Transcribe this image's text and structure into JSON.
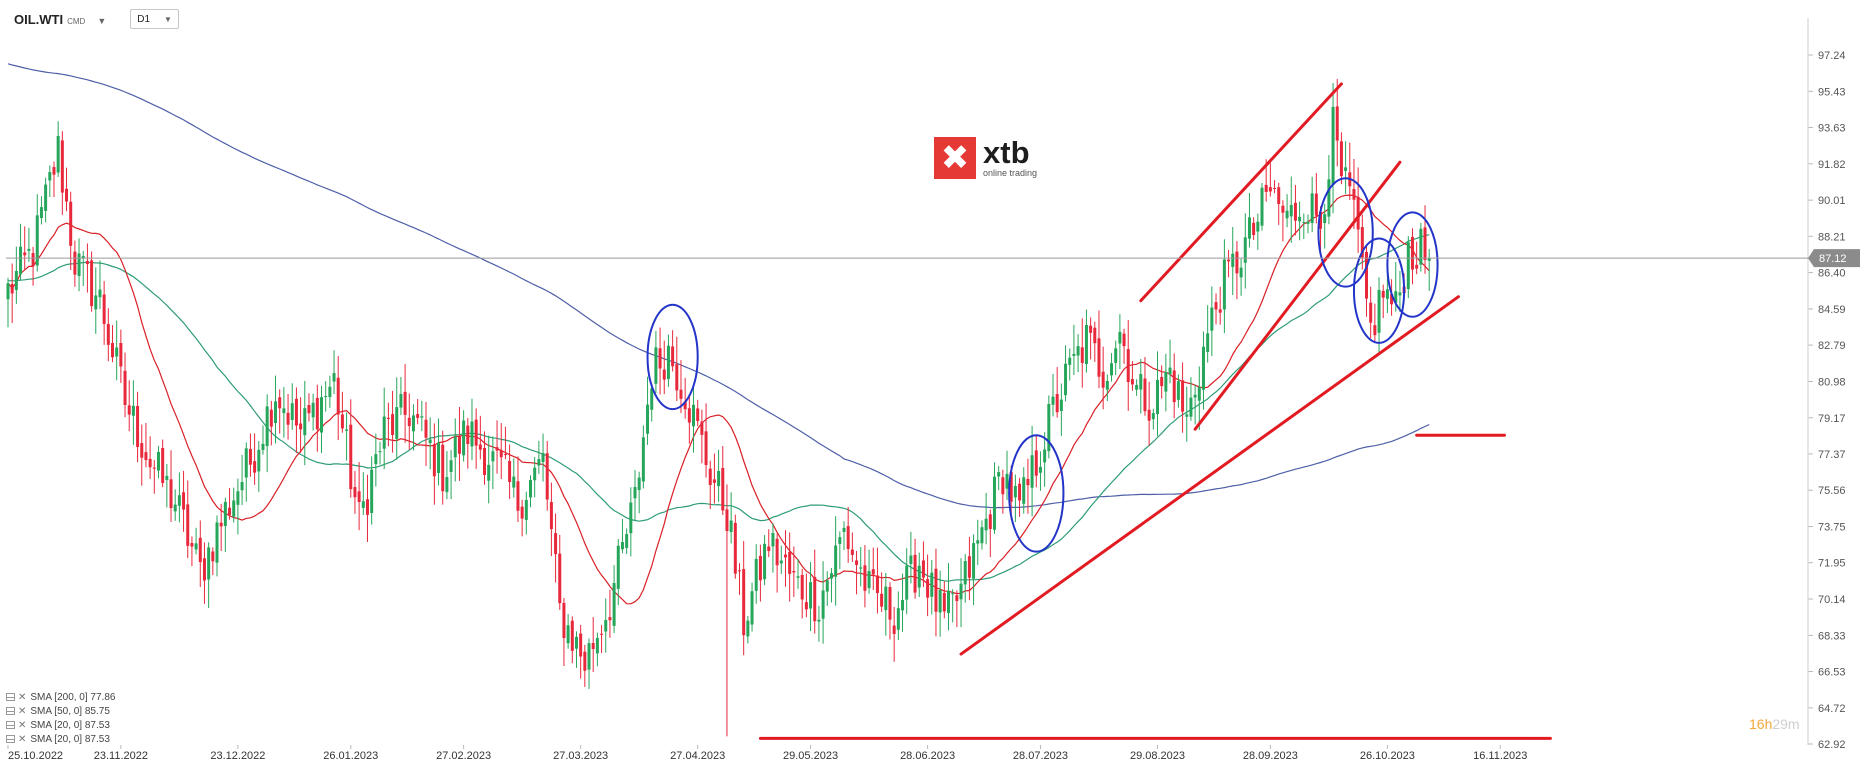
{
  "header": {
    "symbol": "OIL.WTI",
    "instrument_type": "CMD",
    "timeframe": "D1"
  },
  "logo": {
    "name": "xtb",
    "tagline": "online trading",
    "brand_color": "#e53935"
  },
  "countdown": {
    "hours": "16h",
    "minutes": "29m"
  },
  "indicators": [
    {
      "label": "SMA [200, 0] 77.86",
      "color": "#4e5fa8"
    },
    {
      "label": "SMA [50, 0] 85.75",
      "color": "#2e9d74"
    },
    {
      "label": "SMA [20, 0] 87.53",
      "color": "#d91f26"
    },
    {
      "label": "SMA [20, 0] 87.53",
      "color": "#d91f26"
    }
  ],
  "chart_data": {
    "type": "candlestick",
    "symbol": "OIL.WTI",
    "timeframe": "D1",
    "last_price": 87.12,
    "y_ticks": [
      97.24,
      95.43,
      93.63,
      91.82,
      90.01,
      88.21,
      86.4,
      84.59,
      82.79,
      80.98,
      79.17,
      77.37,
      75.56,
      73.75,
      71.95,
      70.14,
      68.33,
      66.53,
      64.72,
      62.92
    ],
    "y_tick_labels": [
      "97.24",
      "95.43",
      "93.63",
      "91.82",
      "90.01",
      "88.21",
      "86.40",
      "84.59",
      "82.79",
      "80.98",
      "79.17",
      "77.37",
      "75.56",
      "73.75",
      "71.95",
      "70.14",
      "68.33",
      "66.53",
      "64.72",
      "62.92"
    ],
    "ylim": [
      62.92,
      98.6
    ],
    "x_labels": [
      "25.10.2022",
      "23.11.2022",
      "23.12.2022",
      "26.01.2023",
      "27.02.2023",
      "27.03.2023",
      "27.04.2023",
      "29.05.2023",
      "28.06.2023",
      "28.07.2023",
      "29.08.2023",
      "28.09.2023",
      "26.10.2023",
      "16.11.2023"
    ],
    "up_color": "#26a65b",
    "down_color": "#e8283b",
    "price_anchors": [
      [
        0,
        85.5
      ],
      [
        6,
        87.5
      ],
      [
        12,
        92.5
      ],
      [
        16,
        87.0
      ],
      [
        22,
        85.0
      ],
      [
        28,
        80.0
      ],
      [
        34,
        77.0
      ],
      [
        40,
        75.0
      ],
      [
        46,
        71.5
      ],
      [
        52,
        74.5
      ],
      [
        58,
        77.0
      ],
      [
        64,
        80.5
      ],
      [
        70,
        78.5
      ],
      [
        78,
        81.0
      ],
      [
        84,
        74.0
      ],
      [
        90,
        78.5
      ],
      [
        96,
        79.5
      ],
      [
        104,
        76.5
      ],
      [
        110,
        78.5
      ],
      [
        118,
        76.5
      ],
      [
        122,
        75.0
      ],
      [
        128,
        77.0
      ],
      [
        132,
        69.5
      ],
      [
        138,
        67.0
      ],
      [
        144,
        70.0
      ],
      [
        150,
        75.0
      ],
      [
        154,
        81.5
      ],
      [
        158,
        82.5
      ],
      [
        162,
        80.5
      ],
      [
        168,
        76.5
      ],
      [
        172,
        74.5
      ],
      [
        176,
        69.0
      ],
      [
        182,
        73.0
      ],
      [
        188,
        71.0
      ],
      [
        194,
        70.0
      ],
      [
        200,
        73.5
      ],
      [
        206,
        70.5
      ],
      [
        212,
        69.5
      ],
      [
        218,
        72.0
      ],
      [
        224,
        69.0
      ],
      [
        228,
        70.5
      ],
      [
        234,
        74.0
      ],
      [
        238,
        76.5
      ],
      [
        242,
        74.5
      ],
      [
        246,
        77.0
      ],
      [
        250,
        79.5
      ],
      [
        254,
        81.5
      ],
      [
        258,
        83.0
      ],
      [
        262,
        81.5
      ],
      [
        266,
        83.5
      ],
      [
        270,
        80.5
      ],
      [
        274,
        80.0
      ],
      [
        278,
        81.5
      ],
      [
        282,
        79.0
      ],
      [
        286,
        82.5
      ],
      [
        290,
        85.5
      ],
      [
        294,
        87.0
      ],
      [
        298,
        88.5
      ],
      [
        302,
        90.5
      ],
      [
        306,
        89.0
      ],
      [
        310,
        90.0
      ],
      [
        314,
        89.0
      ],
      [
        317,
        93.5
      ],
      [
        319,
        91.0
      ],
      [
        322,
        89.5
      ],
      [
        324,
        86.0
      ],
      [
        326,
        83.5
      ],
      [
        329,
        85.5
      ],
      [
        332,
        84.5
      ],
      [
        335,
        87.5
      ],
      [
        338,
        87.4
      ],
      [
        340,
        87.12
      ]
    ],
    "annotations": {
      "trendlines": [
        {
          "from": [
            271,
            85.0
          ],
          "to": [
            319,
            95.8
          ]
        },
        {
          "from": [
            284,
            78.6
          ],
          "to": [
            333,
            91.9
          ]
        },
        {
          "from": [
            228,
            67.4
          ],
          "to": [
            347,
            85.2
          ]
        },
        {
          "from": [
            180,
            63.2
          ],
          "to": [
            369,
            63.2
          ]
        },
        {
          "from": [
            337,
            78.3
          ],
          "to": [
            358,
            78.3
          ]
        }
      ],
      "circles": [
        {
          "center": [
            159,
            82.2
          ],
          "rx": 6,
          "ry": 2.6
        },
        {
          "center": [
            246,
            75.4
          ],
          "rx": 6.5,
          "ry": 2.9
        },
        {
          "center": [
            320,
            88.4
          ],
          "rx": 6.5,
          "ry": 2.7
        },
        {
          "center": [
            328,
            85.5
          ],
          "rx": 6,
          "ry": 2.6
        },
        {
          "center": [
            336,
            86.8
          ],
          "rx": 6,
          "ry": 2.6
        }
      ]
    }
  }
}
